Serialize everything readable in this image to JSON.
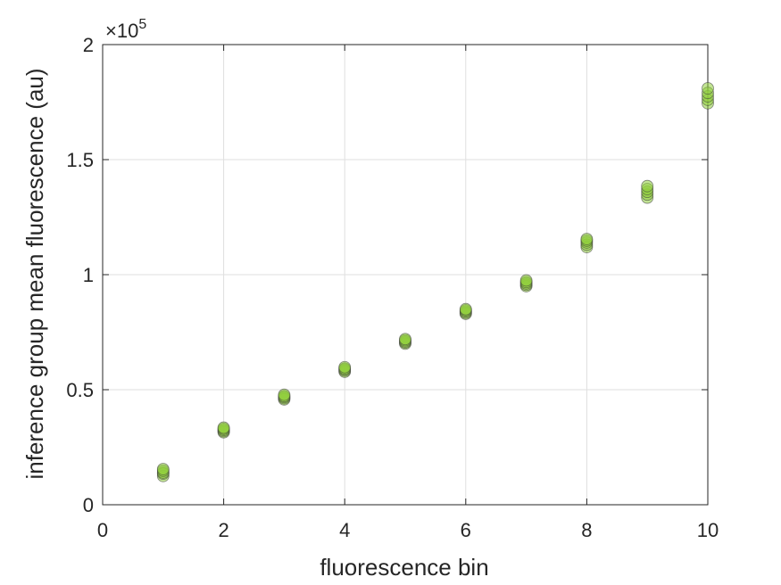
{
  "chart_data": {
    "type": "scatter",
    "title": "",
    "xlabel": "fluorescence bin",
    "ylabel": "inference group mean fluorescence (au)",
    "xlim": [
      0,
      10
    ],
    "ylim": [
      0,
      200000
    ],
    "xticks": [
      0,
      2,
      4,
      6,
      8,
      10
    ],
    "xtick_labels": [
      "0",
      "2",
      "4",
      "6",
      "8",
      "10"
    ],
    "yticks": [
      0,
      50000,
      100000,
      150000,
      200000
    ],
    "ytick_labels": [
      "0",
      "0.5",
      "1",
      "1.5",
      "2"
    ],
    "y_multiplier": {
      "base": "×10",
      "exponent": "5"
    },
    "grid": true,
    "marker_color": "#8fce3c",
    "marker_edge_color": "#3a3a3a",
    "series": [
      {
        "x": [
          1,
          1,
          1,
          1,
          1,
          2,
          2,
          2,
          2,
          2,
          3,
          3,
          3,
          3,
          3,
          4,
          4,
          4,
          4,
          4,
          5,
          5,
          5,
          5,
          5,
          6,
          6,
          6,
          6,
          6,
          7,
          7,
          7,
          7,
          7,
          8,
          8,
          8,
          8,
          8,
          9,
          9,
          9,
          9,
          9,
          10,
          10,
          10,
          10,
          10
        ],
        "y": [
          12500,
          13500,
          14000,
          14800,
          15500,
          31500,
          32000,
          32500,
          33000,
          33500,
          45800,
          46300,
          46800,
          47200,
          47800,
          57800,
          58300,
          58800,
          59200,
          59800,
          70000,
          70500,
          71000,
          71500,
          72000,
          83000,
          83500,
          84000,
          84500,
          85000,
          95000,
          95600,
          96200,
          96800,
          97500,
          112000,
          113000,
          114000,
          114800,
          115500,
          133500,
          134800,
          136000,
          137200,
          138500,
          174500,
          176000,
          177500,
          179000,
          181000
        ]
      }
    ]
  }
}
